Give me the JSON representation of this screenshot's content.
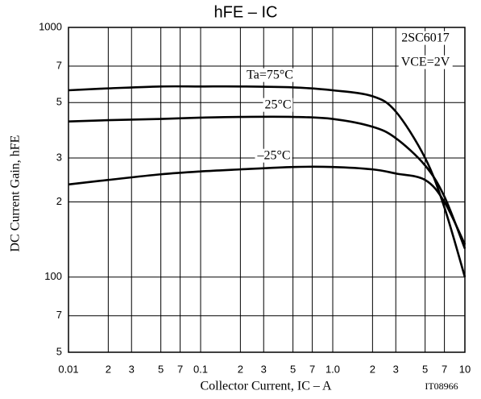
{
  "chart_data": {
    "type": "line",
    "title": "hFE – IC",
    "x_label": "Collector Current, IC – A",
    "y_label": "DC Current Gain, hFE",
    "annotations": [
      "2SC6017",
      "VCE=2V",
      "IT08966"
    ],
    "log_x": true,
    "log_y": true,
    "grid": true,
    "xlim": [
      0.01,
      10
    ],
    "ylim": [
      50,
      1000
    ],
    "xticks": [
      0.01,
      {
        "value": 0.02,
        "label": "2"
      },
      {
        "value": 0.03,
        "label": "3"
      },
      {
        "value": 0.05,
        "label": "5"
      },
      {
        "value": 0.07,
        "label": "7"
      },
      0.1,
      {
        "value": 0.2,
        "label": "2"
      },
      {
        "value": 0.3,
        "label": "3"
      },
      {
        "value": 0.5,
        "label": "5"
      },
      {
        "value": 0.7,
        "label": "7"
      },
      {
        "value": 1,
        "label": "1.0"
      },
      {
        "value": 2,
        "label": "2"
      },
      {
        "value": 3,
        "label": "3"
      },
      {
        "value": 5,
        "label": "5"
      },
      {
        "value": 7,
        "label": "7"
      },
      10
    ],
    "yticks": [
      {
        "value": 50,
        "label": "5"
      },
      {
        "value": 70,
        "label": "7"
      },
      100,
      {
        "value": 200,
        "label": "2"
      },
      {
        "value": 300,
        "label": "3"
      },
      {
        "value": 500,
        "label": "5"
      },
      {
        "value": 700,
        "label": "7"
      },
      1000
    ],
    "x": [
      0.01,
      0.02,
      0.05,
      0.1,
      0.2,
      0.5,
      1,
      2,
      3,
      5,
      7,
      10
    ],
    "series": [
      {
        "name": "Ta=75°C",
        "color": "#000000",
        "values": [
          560,
          570,
          580,
          580,
          580,
          575,
          560,
          530,
          460,
          300,
          190,
          100
        ]
      },
      {
        "name": "25°C",
        "color": "#000000",
        "values": [
          420,
          425,
          430,
          435,
          438,
          438,
          430,
          400,
          360,
          280,
          210,
          130
        ]
      },
      {
        "name": "–25°C",
        "color": "#000000",
        "values": [
          235,
          245,
          258,
          265,
          270,
          276,
          276,
          270,
          260,
          245,
          200,
          135
        ]
      }
    ]
  }
}
